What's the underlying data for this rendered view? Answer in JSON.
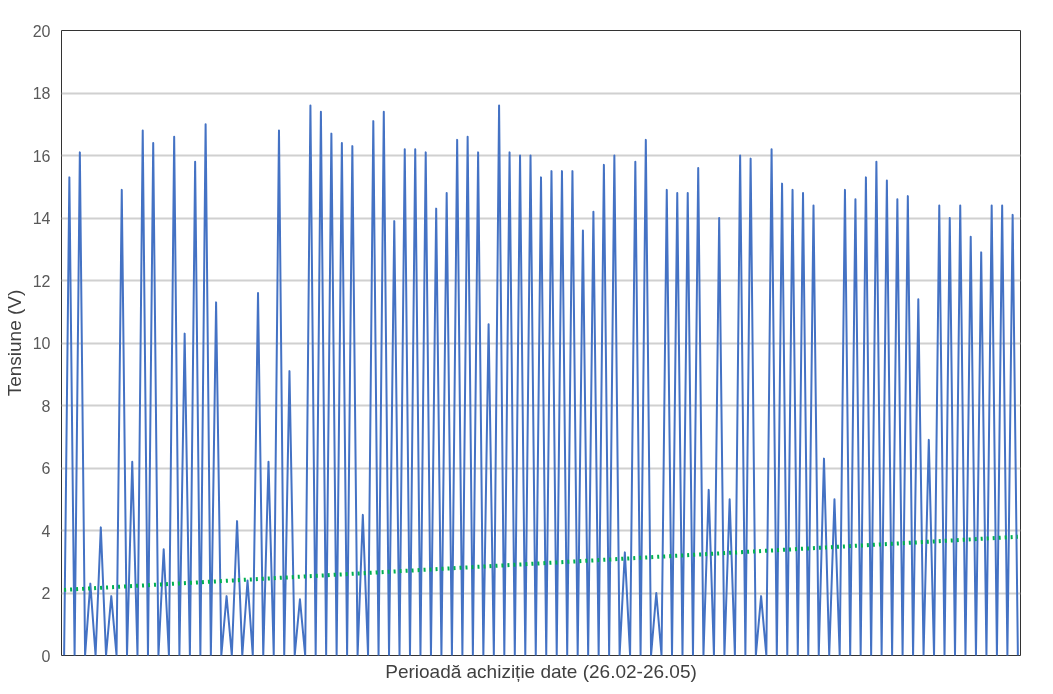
{
  "chart_data": {
    "type": "line",
    "xlabel": "Perioadă achiziție date (26.02-26.05)",
    "ylabel": "Tensiune (V)",
    "categories": [
      null,
      null,
      null,
      null,
      null,
      null,
      null,
      null,
      null,
      null,
      null,
      null,
      null,
      null,
      null,
      null,
      null,
      null,
      null,
      null,
      null,
      null,
      null,
      null,
      null,
      null,
      null,
      null,
      null,
      null,
      null,
      null,
      null,
      null,
      null,
      null,
      null,
      null,
      null,
      null,
      null,
      null,
      null,
      null,
      null,
      null,
      null,
      null,
      null,
      null,
      null,
      null,
      null,
      null,
      null,
      null,
      null,
      null,
      null,
      null,
      null,
      null,
      null,
      null,
      null,
      null,
      null,
      null,
      null,
      null,
      null,
      null,
      null,
      null,
      null,
      null,
      null,
      null,
      null,
      null,
      null,
      null,
      null,
      null,
      null,
      null,
      null,
      null,
      null,
      null,
      null,
      null,
      null,
      null,
      null,
      null,
      null,
      null,
      null,
      null,
      null,
      null,
      null,
      null,
      null,
      null,
      null,
      null,
      null,
      null,
      null,
      null,
      null,
      null,
      null,
      null,
      null,
      null,
      null,
      null,
      null,
      null,
      null,
      null,
      null,
      null,
      null,
      null,
      null,
      null,
      null,
      null,
      null,
      null,
      null,
      null,
      null,
      null,
      null,
      null,
      null,
      null,
      null,
      null,
      null,
      null,
      null,
      null,
      null,
      null,
      null,
      null,
      null,
      null,
      null,
      null,
      null,
      null,
      null,
      null,
      null,
      null,
      null,
      null,
      null,
      null,
      null,
      null,
      null,
      null,
      null,
      null,
      null,
      null,
      null,
      null,
      null,
      null,
      null,
      null,
      null,
      null,
      null
    ],
    "series": [
      {
        "color": "#4472c4",
        "values": [
          0,
          15.3,
          0,
          16.1,
          0,
          2.3,
          0,
          4.1,
          0,
          1.9,
          0,
          14.9,
          0,
          6.2,
          0,
          16.8,
          0,
          16.4,
          0,
          3.4,
          0,
          16.6,
          0,
          10.3,
          0,
          15.8,
          0,
          17.0,
          0,
          11.3,
          0,
          1.9,
          0,
          4.3,
          0,
          2.4,
          0,
          11.6,
          0,
          6.2,
          0,
          16.8,
          0,
          9.1,
          0,
          1.8,
          0,
          17.6,
          0,
          17.4,
          0,
          16.7,
          0,
          16.4,
          0,
          16.3,
          0,
          4.5,
          0,
          17.1,
          0,
          17.4,
          0,
          13.9,
          0,
          16.2,
          0,
          16.2,
          0,
          16.1,
          0,
          14.3,
          0,
          14.8,
          0,
          16.5,
          0,
          16.6,
          0,
          16.1,
          0,
          10.6,
          0,
          17.6,
          0,
          16.1,
          0,
          16.0,
          0,
          16.0,
          0,
          15.3,
          0,
          15.5,
          0,
          15.5,
          0,
          15.5,
          0,
          13.6,
          0,
          14.2,
          0,
          15.7,
          0,
          16.0,
          0,
          3.3,
          0,
          15.8,
          0,
          16.5,
          0,
          2.0,
          0,
          14.9,
          0,
          14.8,
          0,
          14.8,
          0,
          15.6,
          0,
          5.3,
          0,
          14.0,
          0,
          5.0,
          0,
          16.0,
          0,
          15.9,
          0,
          1.9,
          0,
          16.2,
          0,
          15.1,
          0,
          14.9,
          0,
          14.8,
          0,
          14.4,
          0,
          6.3,
          0,
          5.0,
          0,
          14.9,
          0,
          14.6,
          0,
          15.3,
          0,
          15.8,
          0,
          15.2,
          0,
          14.6,
          0,
          14.7,
          0,
          11.4,
          0,
          6.9,
          0,
          14.4,
          0,
          14.0,
          0,
          14.4,
          0,
          13.4,
          0,
          12.9,
          0,
          14.4,
          0,
          14.4,
          0,
          14.1,
          0
        ]
      },
      {
        "type": "line",
        "color": "#00b050",
        "line_style": "dotted",
        "values": [
          2.1,
          null,
          null,
          null,
          null,
          null,
          null,
          null,
          null,
          null,
          null,
          null,
          null,
          null,
          null,
          null,
          null,
          null,
          null,
          null,
          null,
          null,
          null,
          null,
          null,
          null,
          null,
          null,
          null,
          null,
          null,
          null,
          null,
          null,
          null,
          null,
          null,
          null,
          null,
          null,
          null,
          null,
          null,
          null,
          null,
          null,
          null,
          null,
          null,
          null,
          null,
          null,
          null,
          null,
          null,
          null,
          null,
          null,
          null,
          null,
          null,
          null,
          null,
          null,
          null,
          null,
          null,
          null,
          null,
          null,
          null,
          null,
          null,
          null,
          null,
          null,
          null,
          null,
          null,
          null,
          null,
          null,
          null,
          null,
          null,
          null,
          null,
          null,
          null,
          null,
          null,
          null,
          null,
          null,
          null,
          null,
          null,
          null,
          null,
          null,
          null,
          null,
          null,
          null,
          null,
          null,
          null,
          null,
          null,
          null,
          null,
          null,
          null,
          null,
          null,
          null,
          null,
          null,
          null,
          null,
          null,
          null,
          null,
          null,
          null,
          null,
          null,
          null,
          null,
          null,
          null,
          null,
          null,
          null,
          null,
          null,
          null,
          null,
          null,
          null,
          null,
          null,
          null,
          null,
          null,
          null,
          null,
          null,
          null,
          null,
          null,
          null,
          null,
          null,
          null,
          null,
          null,
          null,
          null,
          null,
          null,
          null,
          null,
          null,
          null,
          null,
          null,
          null,
          null,
          null,
          null,
          null,
          null,
          null,
          null,
          null,
          null,
          null,
          null,
          null,
          null,
          null,
          3.8
        ]
      }
    ],
    "ylim": [
      0,
      20
    ],
    "yticks": [
      0,
      2,
      4,
      6,
      8,
      10,
      12,
      14,
      16,
      18,
      20
    ],
    "grid": "y",
    "tick_labels": "y",
    "marker": "none",
    "line_style": "solid"
  }
}
